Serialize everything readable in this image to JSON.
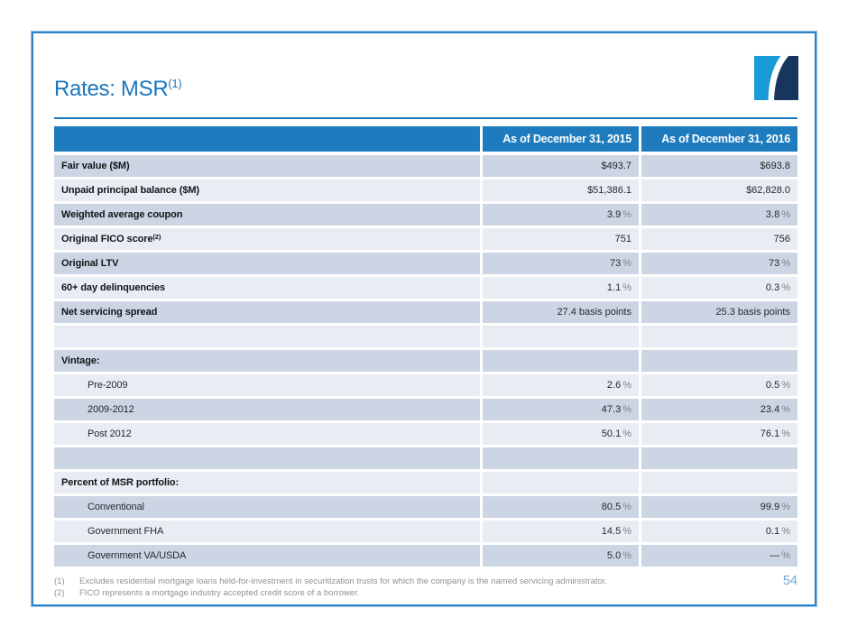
{
  "slide": {
    "title": "Rates: MSR",
    "title_sup": "(1)",
    "page_number": "54",
    "accent_color": "#1B76BC",
    "border_color": "#2F83C5",
    "logo_colors": {
      "light_blue": "#189CD8",
      "navy": "#17365D"
    }
  },
  "table": {
    "header_bg": "#1E7CBE",
    "row_dark_bg": "#CCD5E3",
    "row_light_bg": "#E8ECF3",
    "columns": [
      "",
      "As of December 31, 2015",
      "As of December 31, 2016"
    ],
    "rows": [
      {
        "label": "Fair value ($M)",
        "style": "metric",
        "v2015": "$493.7",
        "v2016": "$693.8"
      },
      {
        "label": "Unpaid principal balance ($M)",
        "style": "metric",
        "v2015": "$51,386.1",
        "v2016": "$62,828.0"
      },
      {
        "label": "Weighted average coupon",
        "style": "metric",
        "v2015": "3.9%",
        "v2016": "3.8%"
      },
      {
        "label": "Original FICO score",
        "sup": "(2)",
        "style": "metric",
        "v2015": "751",
        "v2016": "756"
      },
      {
        "label": "Original LTV",
        "style": "metric",
        "v2015": "73%",
        "v2016": "73%"
      },
      {
        "label": "60+ day delinquencies",
        "style": "metric",
        "v2015": "1.1%",
        "v2016": "0.3%"
      },
      {
        "label": "Net servicing spread",
        "style": "metric",
        "v2015": "27.4 basis points",
        "v2016": "25.3 basis points"
      },
      {
        "label": "",
        "style": "spacer",
        "v2015": "",
        "v2016": ""
      },
      {
        "label": "Vintage:",
        "style": "section",
        "v2015": "",
        "v2016": ""
      },
      {
        "label": "Pre-2009",
        "style": "item",
        "v2015": "2.6%",
        "v2016": "0.5%"
      },
      {
        "label": "2009-2012",
        "style": "item",
        "v2015": "47.3%",
        "v2016": "23.4%"
      },
      {
        "label": "Post 2012",
        "style": "item",
        "v2015": "50.1%",
        "v2016": "76.1%"
      },
      {
        "label": "",
        "style": "spacer",
        "v2015": "",
        "v2016": ""
      },
      {
        "label": "Percent of MSR portfolio:",
        "style": "section",
        "v2015": "",
        "v2016": ""
      },
      {
        "label": "Conventional",
        "style": "item",
        "v2015": "80.5%",
        "v2016": "99.9%"
      },
      {
        "label": "Government FHA",
        "style": "item",
        "v2015": "14.5%",
        "v2016": "0.1%"
      },
      {
        "label": "Government VA/USDA",
        "style": "item",
        "v2015": "5.0%",
        "v2016": "—%"
      }
    ]
  },
  "footnotes": [
    {
      "marker": "(1)",
      "text": "Excludes residential mortgage loans held-for-investment in securitization trusts for which the company is the named servicing administrator."
    },
    {
      "marker": "(2)",
      "text": "FICO represents a mortgage industry accepted credit score of a borrower."
    }
  ]
}
